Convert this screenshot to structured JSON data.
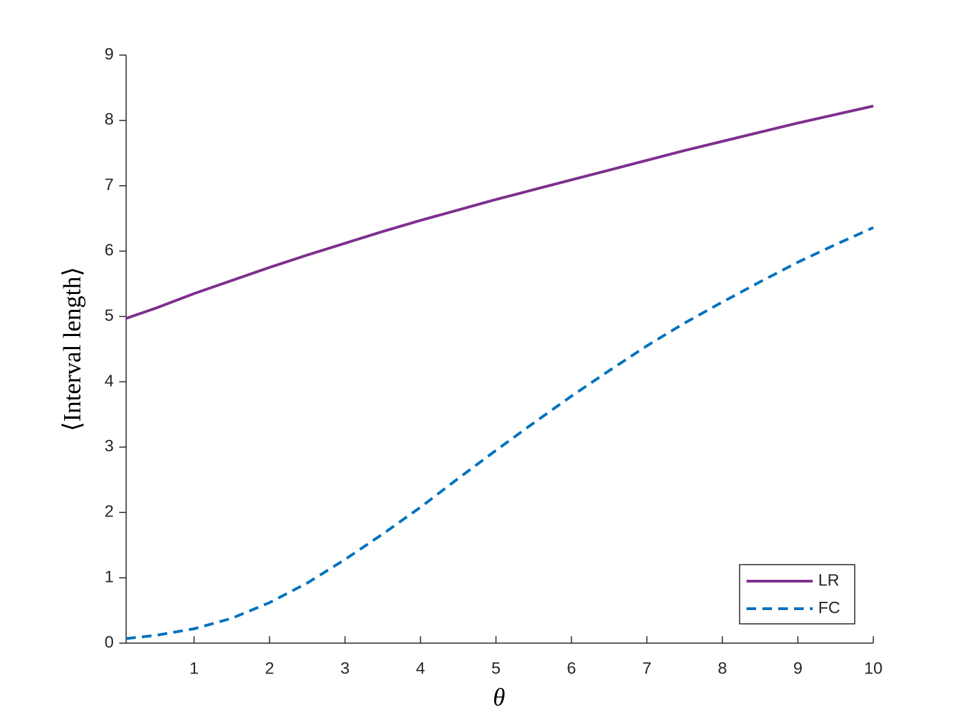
{
  "chart_data": {
    "type": "line",
    "x_label": "θ",
    "y_label": "⟨Interval length⟩",
    "x": [
      0.1,
      0.5,
      1,
      1.5,
      2,
      2.5,
      3,
      3.5,
      4,
      4.5,
      5,
      5.5,
      6,
      6.5,
      7,
      7.5,
      8,
      8.5,
      9,
      9.5,
      10
    ],
    "series": [
      {
        "name": "LR",
        "color": "#7e2f8e",
        "linestyle": "solid",
        "values": [
          4.97,
          5.13,
          5.35,
          5.55,
          5.75,
          5.94,
          6.12,
          6.3,
          6.47,
          6.63,
          6.79,
          6.94,
          7.09,
          7.24,
          7.39,
          7.54,
          7.68,
          7.82,
          7.96,
          8.09,
          8.22
        ]
      },
      {
        "name": "FC",
        "color": "#0072bd",
        "linestyle": "dashed",
        "values": [
          0.07,
          0.12,
          0.22,
          0.38,
          0.62,
          0.92,
          1.28,
          1.67,
          2.08,
          2.52,
          2.95,
          3.37,
          3.78,
          4.17,
          4.55,
          4.9,
          5.22,
          5.53,
          5.83,
          6.1,
          6.36
        ]
      }
    ],
    "xlim": [
      0.1,
      10
    ],
    "ylim": [
      0,
      9
    ],
    "xticks": [
      1,
      2,
      3,
      4,
      5,
      6,
      7,
      8,
      9,
      10
    ],
    "yticks": [
      0,
      1,
      2,
      3,
      4,
      5,
      6,
      7,
      8,
      9
    ],
    "legend": "lower right"
  }
}
